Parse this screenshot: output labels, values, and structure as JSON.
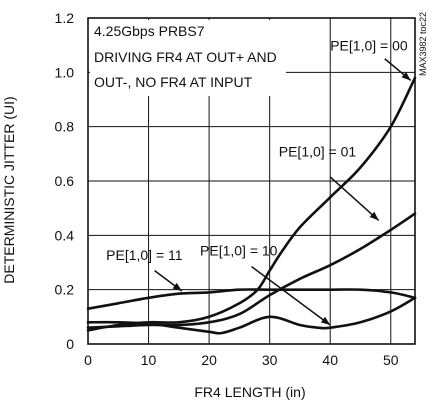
{
  "chart_data": {
    "type": "line",
    "xlabel": "FR4 LENGTH (in)",
    "ylabel": "DETERMINISTIC JITTER (UI)",
    "xlim": [
      0,
      54
    ],
    "ylim": [
      0,
      1.2
    ],
    "xticks": [
      0,
      10,
      20,
      30,
      40,
      50
    ],
    "yticks": [
      0,
      0.2,
      0.4,
      0.6,
      0.8,
      1.0,
      1.2
    ],
    "xtick_labels": [
      "0",
      "10",
      "20",
      "30",
      "40",
      "50"
    ],
    "ytick_labels": [
      "0",
      "0.2",
      "0.4",
      "0.6",
      "0.8",
      "1.0",
      "1.2"
    ],
    "grid": true,
    "annotation_lines": [
      "4.25Gbps PRBS7",
      "DRIVING FR4 AT OUT+ AND",
      "OUT-, NO FR4 AT INPUT"
    ],
    "part_label": "MAX3982 toc22",
    "series": [
      {
        "name": "PE[1,0] = 00",
        "x": [
          0,
          5,
          10,
          15,
          20,
          25,
          28,
          30,
          32,
          35,
          40,
          45,
          50,
          54
        ],
        "y": [
          0.05,
          0.07,
          0.08,
          0.08,
          0.1,
          0.15,
          0.2,
          0.27,
          0.34,
          0.43,
          0.54,
          0.65,
          0.8,
          0.98
        ]
      },
      {
        "name": "PE[1,0] = 01",
        "x": [
          0,
          5,
          10,
          15,
          20,
          25,
          30,
          35,
          40,
          45,
          50,
          54
        ],
        "y": [
          0.06,
          0.065,
          0.07,
          0.07,
          0.08,
          0.11,
          0.18,
          0.24,
          0.29,
          0.35,
          0.42,
          0.48
        ]
      },
      {
        "name": "PE[1,0] = 11",
        "x": [
          0,
          5,
          10,
          15,
          20,
          25,
          30,
          35,
          40,
          45,
          50,
          54
        ],
        "y": [
          0.13,
          0.15,
          0.17,
          0.185,
          0.19,
          0.2,
          0.2,
          0.2,
          0.2,
          0.2,
          0.19,
          0.17
        ]
      },
      {
        "name": "PE[1,0] = 10",
        "x": [
          0,
          5,
          10,
          15,
          20,
          22,
          25,
          30,
          35,
          38,
          40,
          45,
          50,
          54
        ],
        "y": [
          0.08,
          0.08,
          0.075,
          0.06,
          0.045,
          0.04,
          0.06,
          0.1,
          0.07,
          0.06,
          0.06,
          0.08,
          0.12,
          0.17
        ]
      }
    ]
  }
}
